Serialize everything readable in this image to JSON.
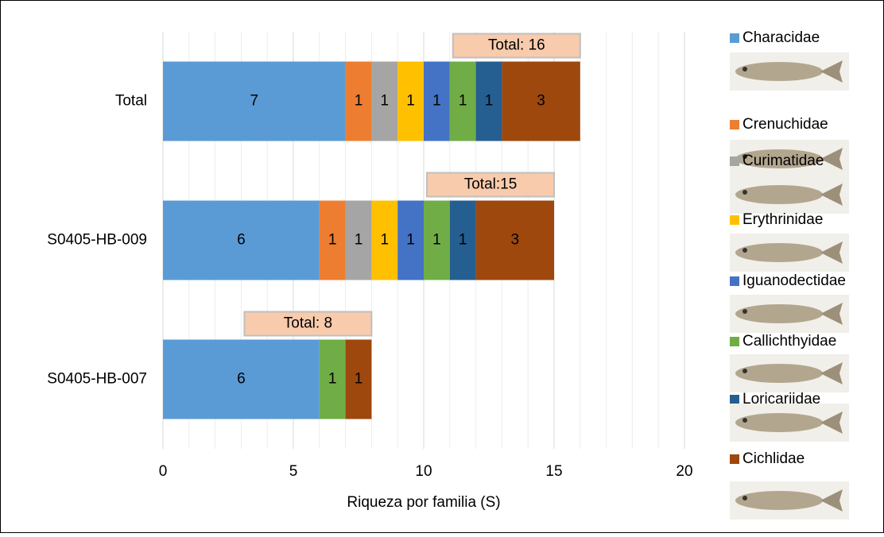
{
  "chart_data": {
    "type": "stacked-bar-horizontal",
    "x_label": "Riqueza por familia (S)",
    "categories": [
      "Total",
      "S0405-HB-009",
      "S0405-HB-007"
    ],
    "series": [
      {
        "name": "Characidae",
        "color": "#5b9bd5",
        "values": [
          7,
          6,
          6
        ]
      },
      {
        "name": "Crenuchidae",
        "color": "#ed7d31",
        "values": [
          1,
          1,
          null
        ]
      },
      {
        "name": "Curimatidae",
        "color": "#a5a5a5",
        "values": [
          1,
          1,
          null
        ]
      },
      {
        "name": "Erythrinidae",
        "color": "#ffc000",
        "values": [
          1,
          1,
          null
        ]
      },
      {
        "name": "Iguanodectidae",
        "color": "#4472c4",
        "values": [
          1,
          1,
          null
        ]
      },
      {
        "name": "Callichthyidae",
        "color": "#70ad47",
        "values": [
          1,
          1,
          1
        ]
      },
      {
        "name": "Loricariidae",
        "color": "#255e91",
        "values": [
          1,
          1,
          null
        ]
      },
      {
        "name": "Cichlidae",
        "color": "#9e480e",
        "values": [
          3,
          3,
          1
        ]
      }
    ],
    "total_labels": [
      "Total: 16",
      "Total:15",
      "Total: 8"
    ],
    "xlim": [
      0,
      20
    ],
    "xticks": [
      0,
      5,
      10,
      15,
      20
    ],
    "grid": true,
    "minor_grid": true,
    "legend": "right"
  }
}
